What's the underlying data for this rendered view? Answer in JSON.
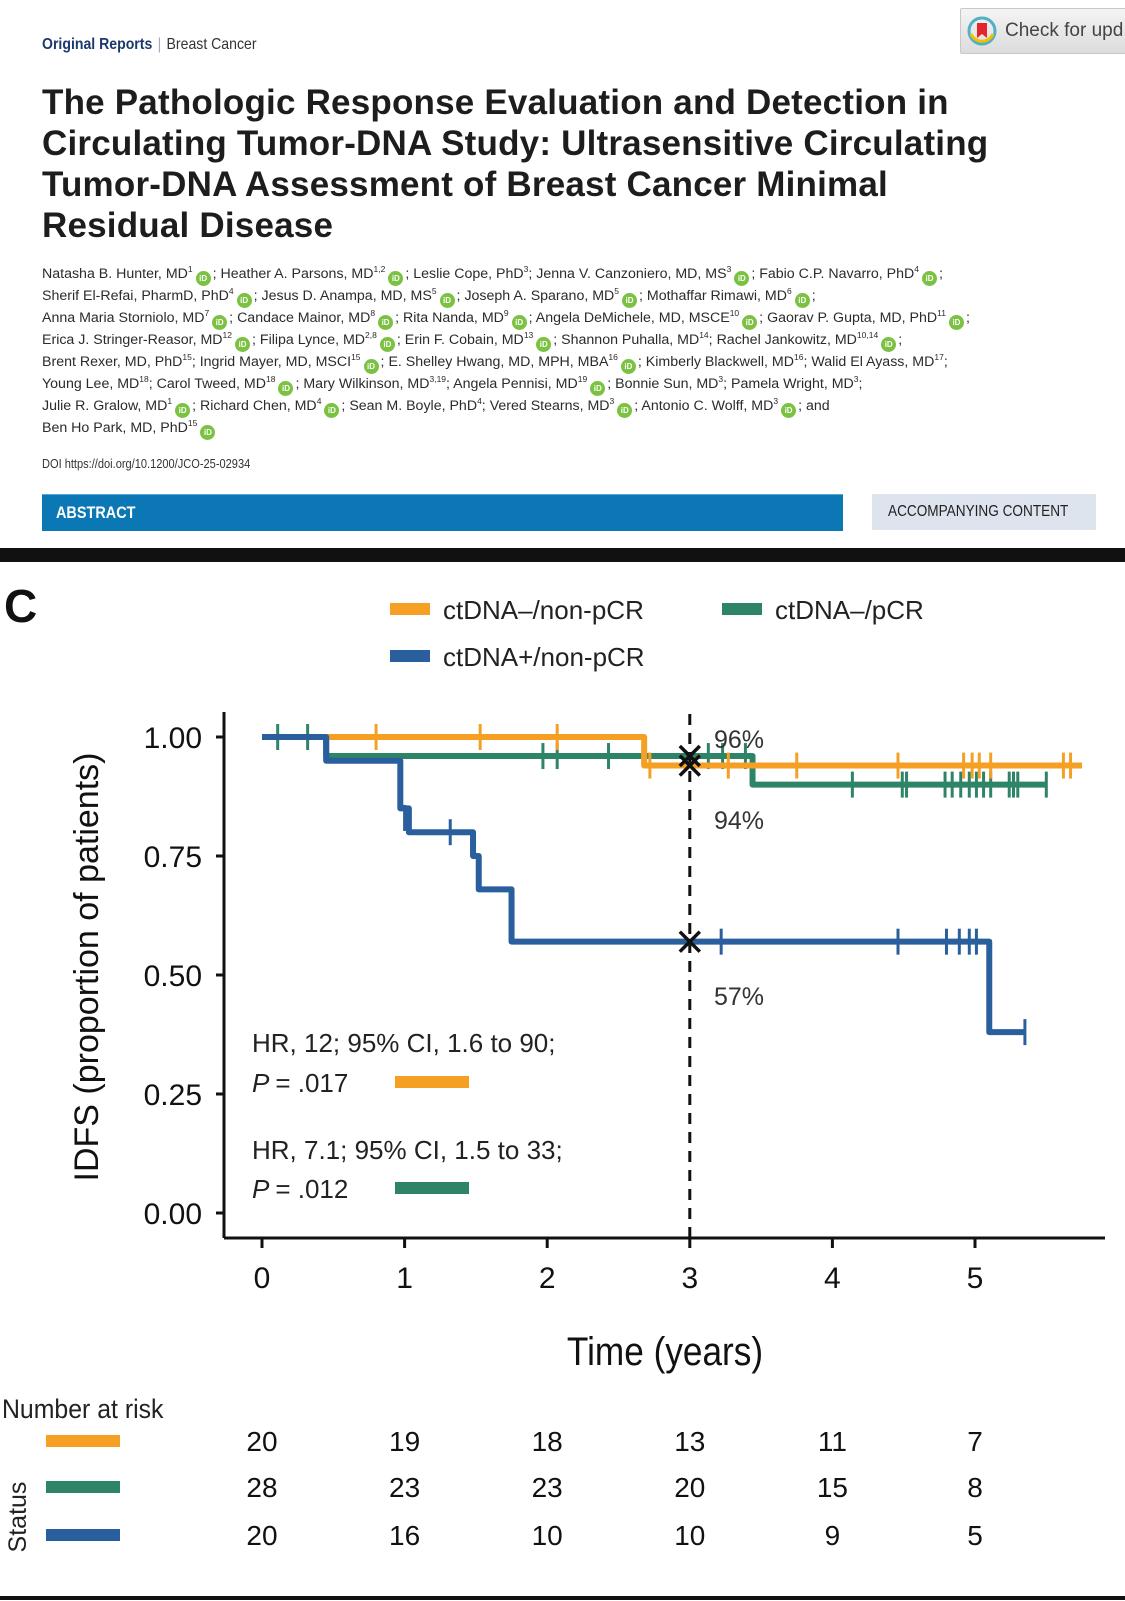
{
  "header": {
    "category": "Original Reports",
    "subcategory": "Breast Cancer",
    "check_updates_label": "Check for upd",
    "title": "The Pathologic Response Evaluation and Detection in Circulating Tumor-DNA Study: Ultrasensitive Circulating Tumor-DNA Assessment of Breast Cancer Minimal Residual Disease",
    "authors": [
      {
        "name": "Natasha B. Hunter, MD",
        "aff": "1",
        "orcid": true
      },
      {
        "name": "Heather A. Parsons, MD",
        "aff": "1,2",
        "orcid": true
      },
      {
        "name": "Leslie Cope, PhD",
        "aff": "3",
        "orcid": false
      },
      {
        "name": "Jenna V. Canzoniero, MD, MS",
        "aff": "3",
        "orcid": true
      },
      {
        "name": "Fabio C.P. Navarro, PhD",
        "aff": "4",
        "orcid": true
      },
      {
        "name": "Sherif El-Refai, PharmD, PhD",
        "aff": "4",
        "orcid": true
      },
      {
        "name": "Jesus D. Anampa, MD, MS",
        "aff": "5",
        "orcid": true
      },
      {
        "name": "Joseph A. Sparano, MD",
        "aff": "5",
        "orcid": true
      },
      {
        "name": "Mothaffar Rimawi, MD",
        "aff": "6",
        "orcid": true
      },
      {
        "name": "Anna Maria Storniolo, MD",
        "aff": "7",
        "orcid": true
      },
      {
        "name": "Candace Mainor, MD",
        "aff": "8",
        "orcid": true
      },
      {
        "name": "Rita Nanda, MD",
        "aff": "9",
        "orcid": true
      },
      {
        "name": "Angela DeMichele, MD, MSCE",
        "aff": "10",
        "orcid": true
      },
      {
        "name": "Gaorav P. Gupta, MD, PhD",
        "aff": "11",
        "orcid": true
      },
      {
        "name": "Erica J. Stringer-Reasor, MD",
        "aff": "12",
        "orcid": true
      },
      {
        "name": "Filipa Lynce, MD",
        "aff": "2,8",
        "orcid": true
      },
      {
        "name": "Erin F. Cobain, MD",
        "aff": "13",
        "orcid": true
      },
      {
        "name": "Shannon Puhalla, MD",
        "aff": "14",
        "orcid": false
      },
      {
        "name": "Rachel Jankowitz, MD",
        "aff": "10,14",
        "orcid": true
      },
      {
        "name": "Brent Rexer, MD, PhD",
        "aff": "15",
        "orcid": false
      },
      {
        "name": "Ingrid Mayer, MD, MSCI",
        "aff": "15",
        "orcid": true
      },
      {
        "name": "E. Shelley Hwang, MD, MPH, MBA",
        "aff": "16",
        "orcid": true
      },
      {
        "name": "Kimberly Blackwell, MD",
        "aff": "16",
        "orcid": false
      },
      {
        "name": "Walid El Ayass, MD",
        "aff": "17",
        "orcid": false
      },
      {
        "name": "Young Lee, MD",
        "aff": "18",
        "orcid": false
      },
      {
        "name": "Carol Tweed, MD",
        "aff": "18",
        "orcid": true
      },
      {
        "name": "Mary Wilkinson, MD",
        "aff": "3,19",
        "orcid": false
      },
      {
        "name": "Angela Pennisi, MD",
        "aff": "19",
        "orcid": true
      },
      {
        "name": "Bonnie Sun, MD",
        "aff": "3",
        "orcid": false
      },
      {
        "name": "Pamela Wright, MD",
        "aff": "3",
        "orcid": false
      },
      {
        "name": "Julie R. Gralow, MD",
        "aff": "1",
        "orcid": true
      },
      {
        "name": "Richard Chen, MD",
        "aff": "4",
        "orcid": true
      },
      {
        "name": "Sean M. Boyle, PhD",
        "aff": "4",
        "orcid": false
      },
      {
        "name": "Vered Stearns, MD",
        "aff": "3",
        "orcid": true
      },
      {
        "name": "Antonio C. Wolff, MD",
        "aff": "3",
        "orcid": true
      },
      {
        "name": "Ben Ho Park, MD, PhD",
        "aff": "15",
        "orcid": true
      }
    ],
    "author_conjunction": "and",
    "orcid_icon_text": "iD",
    "doi": "DOI https://doi.org/10.1200/JCO-25-02934",
    "abstract_label": "ABSTRACT",
    "accompanying_label": "ACCOMPANYING CONTENT"
  },
  "figure": {
    "panel_label": "C",
    "number_at_risk_title": "Number at risk",
    "status_label": "Status",
    "hr_annotations": [
      {
        "line1": "HR, 12; 95% CI, 1.6 to 90;",
        "p_label": "P",
        "p_value": "= .017",
        "series": "ctDNA–/non-pCR"
      },
      {
        "line1": "HR, 7.1; 95% CI, 1.5 to 33;",
        "p_label": "P",
        "p_value": "= .012",
        "series": "ctDNA–/pCR"
      }
    ],
    "landmark_labels": [
      {
        "text": "96%",
        "series": "ctDNA–/pCR"
      },
      {
        "text": "94%",
        "series": "ctDNA–/non-pCR"
      },
      {
        "text": "57%",
        "series": "ctDNA+/non-pCR"
      }
    ]
  },
  "chart_data": {
    "type": "line",
    "subtype": "kaplan-meier step",
    "title": "",
    "xlabel": "Time (years)",
    "ylabel": "IDFS (proportion of patients)",
    "xlim": [
      -0.1,
      5.75
    ],
    "ylim": [
      0,
      1
    ],
    "x_ticks": [
      0,
      1,
      2,
      3,
      4,
      5
    ],
    "y_ticks": [
      "0.00",
      "0.25",
      "0.50",
      "0.75",
      "1.00"
    ],
    "landmark_x": 3,
    "legend_position": "top",
    "series": [
      {
        "name": "ctDNA–/non-pCR",
        "color": "#f5a025",
        "steps": [
          [
            0.45,
            1.0
          ],
          [
            2.68,
            0.94
          ],
          [
            5.75,
            0.94
          ]
        ],
        "censored": [
          [
            0.8,
            1.0
          ],
          [
            1.53,
            1.0
          ],
          [
            2.07,
            1.0
          ],
          [
            2.72,
            0.94
          ],
          [
            3.27,
            0.94
          ],
          [
            3.75,
            0.94
          ],
          [
            4.46,
            0.94
          ],
          [
            4.92,
            0.94
          ],
          [
            4.98,
            0.94
          ],
          [
            5.03,
            0.94
          ],
          [
            5.11,
            0.94
          ],
          [
            5.62,
            0.94
          ],
          [
            5.67,
            0.94
          ]
        ],
        "landmark_value": 0.94,
        "number_at_risk": [
          20,
          19,
          18,
          13,
          11,
          7
        ]
      },
      {
        "name": "ctDNA–/pCR",
        "color": "#2e8466",
        "steps": [
          [
            0,
            1.0
          ],
          [
            0.45,
            0.96
          ],
          [
            3.44,
            0.9
          ],
          [
            5.5,
            0.9
          ]
        ],
        "censored": [
          [
            0.11,
            1.0
          ],
          [
            0.32,
            1.0
          ],
          [
            1.97,
            0.96
          ],
          [
            2.07,
            0.96
          ],
          [
            2.43,
            0.96
          ],
          [
            3.13,
            0.96
          ],
          [
            3.23,
            0.96
          ],
          [
            3.39,
            0.96
          ],
          [
            4.14,
            0.9
          ],
          [
            4.49,
            0.9
          ],
          [
            4.52,
            0.9
          ],
          [
            4.79,
            0.9
          ],
          [
            4.84,
            0.9
          ],
          [
            4.9,
            0.9
          ],
          [
            4.96,
            0.9
          ],
          [
            5.01,
            0.9
          ],
          [
            5.06,
            0.9
          ],
          [
            5.11,
            0.9
          ],
          [
            5.24,
            0.9
          ],
          [
            5.27,
            0.9
          ],
          [
            5.3,
            0.9
          ],
          [
            5.5,
            0.9
          ]
        ],
        "landmark_value": 0.96,
        "number_at_risk": [
          28,
          23,
          23,
          20,
          15,
          8
        ]
      },
      {
        "name": "ctDNA+/non-pCR",
        "color": "#2a5f9e",
        "steps": [
          [
            0,
            1.0
          ],
          [
            0.45,
            0.95
          ],
          [
            0.97,
            0.85
          ],
          [
            1.03,
            0.8
          ],
          [
            1.22,
            0.8
          ],
          [
            1.48,
            0.75
          ],
          [
            1.52,
            0.68
          ],
          [
            1.75,
            0.57
          ],
          [
            5.1,
            0.38
          ],
          [
            5.35,
            0.38
          ]
        ],
        "censored": [
          [
            1.0,
            0.83
          ],
          [
            1.32,
            0.8
          ],
          [
            3.22,
            0.57
          ],
          [
            4.46,
            0.57
          ],
          [
            4.8,
            0.57
          ],
          [
            4.89,
            0.57
          ],
          [
            4.96,
            0.57
          ],
          [
            5.01,
            0.57
          ],
          [
            5.35,
            0.38
          ]
        ],
        "landmark_value": 0.57,
        "number_at_risk": [
          20,
          16,
          10,
          10,
          9,
          5
        ]
      }
    ]
  }
}
